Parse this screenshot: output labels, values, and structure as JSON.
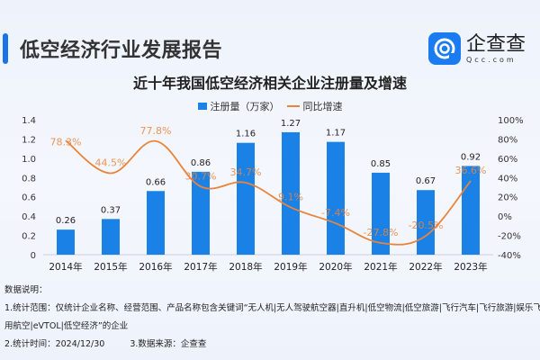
{
  "header": {
    "title": "低空经济行业发展报告",
    "logo_cn": "企查查",
    "logo_en": "Qcc.com"
  },
  "chart_data": {
    "type": "bar+line",
    "title": "近十年我国低空经济相关企业注册量及增速",
    "categories": [
      "2014年",
      "2015年",
      "2016年",
      "2017年",
      "2018年",
      "2019年",
      "2020年",
      "2021年",
      "2022年",
      "2023年"
    ],
    "series": [
      {
        "name": "注册量（万家）",
        "type": "bar",
        "axis": "left",
        "color": "#1a82e6",
        "values": [
          0.26,
          0.37,
          0.66,
          0.86,
          1.16,
          1.27,
          1.17,
          0.85,
          0.67,
          0.92
        ],
        "labels": [
          "0.26",
          "0.37",
          "0.66",
          "0.86",
          "1.16",
          "1.27",
          "1.17",
          "0.85",
          "0.67",
          "0.92"
        ]
      },
      {
        "name": "同比增速",
        "type": "line",
        "axis": "right",
        "color": "#e8843c",
        "values": [
          78.3,
          44.5,
          77.8,
          30.7,
          34.7,
          9.1,
          -7.4,
          -27.8,
          -20.5,
          36.6
        ],
        "labels": [
          "78.3%",
          "44.5%",
          "77.8%",
          "30.7%",
          "34.7%",
          "9.1%",
          "-7.4%",
          "-27.8%",
          "-20.5%",
          "36.6%"
        ]
      }
    ],
    "y_left": {
      "range": [
        0,
        1.4
      ],
      "ticks": [
        "0",
        "0.2",
        "0.4",
        "0.6",
        "0.8",
        "1.0",
        "1.2",
        "1.4"
      ]
    },
    "y_right": {
      "range": [
        -40,
        100
      ],
      "ticks": [
        "-40%",
        "-20%",
        "0%",
        "20%",
        "40%",
        "60%",
        "80%",
        "100%"
      ]
    },
    "grid": false,
    "legend": "top-center"
  },
  "notes": {
    "heading": "数据说明：",
    "line1": "1.统计范围：仅统计企业名称、经营范围、产品名称包含关键词“无人机|无人驾驶航空器|直升机|低空物流|低空旅游|飞行汽车|飞行旅游|娱乐飞行|通",
    "line2": "用航空|eVTOL|低空经济”的企业",
    "line3a": "2.统计时间：2024/12/30",
    "line3b": "3.数据来源：企查查"
  }
}
